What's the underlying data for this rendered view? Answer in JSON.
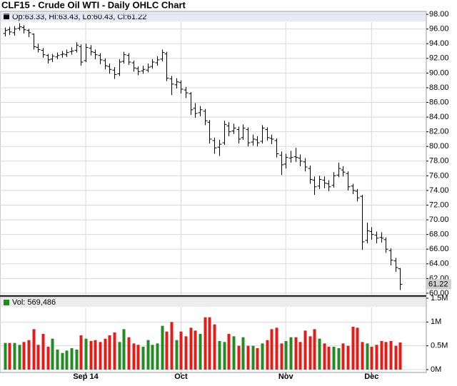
{
  "chart_data": [
    {
      "type": "ohlc",
      "title": "CLF15 - Crude Oil WTI - Daily OHLC Chart",
      "legend_text": "Op:63.33, Hi:63.43, Lo:60.43, Cl:61.22",
      "color": "#000000",
      "open": [
        95.4,
        95.9,
        95.5,
        96.1,
        96.2,
        95.8,
        95.3,
        93.5,
        93.1,
        92.4,
        91.9,
        92.2,
        92.5,
        92.5,
        92.9,
        93.1,
        93.6,
        91.7,
        93.4,
        92.8,
        92.4,
        91.7,
        90.9,
        90.4,
        89.9,
        91.6,
        92.4,
        91.4,
        90.6,
        90.3,
        90.4,
        90.9,
        91.4,
        91.9,
        92.6,
        89.2,
        88.4,
        88.7,
        87.7,
        87.2,
        85.2,
        84.6,
        84.8,
        83.3,
        80.8,
        79.9,
        80.5,
        82.8,
        82.1,
        82.3,
        81.2,
        82.3,
        80.6,
        80.9,
        80.7,
        82.3,
        81.1,
        80.8,
        78.8,
        77.6,
        78.4,
        78.6,
        78.4,
        77.9,
        77.0,
        75.4,
        74.6,
        75.4,
        74.9,
        74.7,
        76.1,
        76.8,
        76.3,
        74.6,
        73.9,
        73.2,
        67.2,
        68.4,
        67.9,
        67.6,
        67.3,
        65.8,
        64.4,
        63.33
      ],
      "high": [
        96.2,
        96.3,
        96.4,
        96.8,
        96.5,
        96.0,
        95.4,
        94.0,
        93.4,
        92.6,
        92.6,
        92.8,
        93.0,
        93.2,
        93.5,
        94.2,
        93.9,
        94.0,
        93.8,
        93.2,
        92.7,
        92.0,
        91.3,
        90.8,
        91.9,
        92.9,
        92.7,
        91.7,
        90.9,
        91.0,
        91.3,
        91.9,
        92.3,
        93.2,
        92.9,
        89.6,
        89.3,
        89.0,
        88.1,
        87.4,
        85.9,
        85.5,
        85.1,
        83.6,
        81.2,
        80.9,
        83.5,
        83.3,
        83.1,
        82.7,
        83.0,
        82.6,
        81.6,
        81.4,
        82.9,
        82.6,
        81.6,
        81.1,
        79.3,
        79.0,
        79.4,
        79.8,
        78.9,
        78.4,
        77.4,
        75.9,
        76.0,
        75.9,
        75.4,
        76.5,
        77.8,
        77.3,
        76.6,
        74.9,
        74.2,
        73.4,
        69.6,
        69.0,
        68.4,
        68.3,
        67.6,
        66.1,
        64.8,
        63.43
      ],
      "low": [
        95.0,
        95.2,
        95.1,
        95.8,
        95.4,
        94.9,
        93.2,
        92.8,
        92.1,
        91.3,
        91.5,
        91.9,
        92.1,
        92.2,
        92.5,
        92.8,
        91.0,
        91.5,
        92.4,
        91.9,
        91.2,
        90.5,
        89.9,
        89.2,
        89.6,
        91.3,
        91.1,
        90.2,
        89.7,
        89.9,
        90.1,
        90.6,
        91.0,
        91.6,
        88.9,
        87.0,
        87.9,
        87.2,
        86.6,
        84.3,
        83.9,
        84.1,
        82.9,
        80.4,
        79.0,
        78.7,
        80.2,
        81.4,
        81.7,
        80.4,
        80.9,
        80.0,
        80.1,
        80.0,
        80.4,
        80.8,
        80.3,
        78.5,
        76.1,
        77.0,
        77.8,
        77.9,
        77.3,
        76.6,
        74.9,
        73.4,
        74.2,
        74.3,
        73.9,
        74.4,
        75.8,
        75.9,
        74.0,
        73.5,
        72.5,
        65.9,
        66.8,
        67.3,
        66.8,
        66.9,
        65.5,
        63.8,
        62.9,
        60.43
      ],
      "close": [
        95.8,
        95.6,
        96.0,
        96.3,
        95.9,
        95.5,
        93.6,
        93.2,
        92.5,
        91.8,
        92.3,
        92.4,
        92.6,
        92.8,
        93.0,
        93.8,
        91.5,
        93.5,
        92.9,
        92.5,
        91.8,
        91.0,
        90.5,
        89.8,
        91.5,
        92.5,
        91.5,
        90.7,
        90.2,
        90.5,
        90.8,
        91.5,
        91.8,
        92.8,
        89.3,
        88.5,
        88.8,
        87.8,
        87.3,
        85.0,
        84.5,
        85.0,
        83.5,
        81.0,
        79.8,
        80.3,
        83.0,
        82.0,
        82.5,
        81.0,
        82.5,
        80.5,
        81.0,
        80.5,
        82.5,
        81.2,
        81.0,
        79.0,
        77.5,
        78.5,
        78.5,
        78.5,
        78.0,
        77.2,
        75.5,
        74.5,
        75.5,
        75.0,
        74.5,
        76.0,
        77.0,
        76.5,
        74.5,
        74.0,
        73.0,
        67.0,
        68.5,
        68.0,
        67.5,
        67.5,
        66.0,
        64.5,
        63.5,
        61.22
      ],
      "xlim": [
        -1,
        88.5
      ],
      "xticks": [
        {
          "value": 17,
          "label": "Sep 14"
        },
        {
          "value": 37,
          "label": "Oct"
        },
        {
          "value": 59,
          "label": "Nov"
        },
        {
          "value": 77,
          "label": "Dec"
        }
      ],
      "ylim": [
        59.7,
        98.4
      ],
      "yticks": [
        {
          "value": 60,
          "label": "60.00"
        },
        {
          "value": 62,
          "label": "62.00"
        },
        {
          "value": 64,
          "label": "64.00"
        },
        {
          "value": 66,
          "label": "66.00"
        },
        {
          "value": 68,
          "label": "68.00"
        },
        {
          "value": 70,
          "label": "70.00"
        },
        {
          "value": 72,
          "label": "72.00"
        },
        {
          "value": 74,
          "label": "74.00"
        },
        {
          "value": 76,
          "label": "76.00"
        },
        {
          "value": 78,
          "label": "78.00"
        },
        {
          "value": 80,
          "label": "80.00"
        },
        {
          "value": 82,
          "label": "82.00"
        },
        {
          "value": 84,
          "label": "84.00"
        },
        {
          "value": 86,
          "label": "86.00"
        },
        {
          "value": 88,
          "label": "88.00"
        },
        {
          "value": 90,
          "label": "90.00"
        },
        {
          "value": 92,
          "label": "92.00"
        },
        {
          "value": 94,
          "label": "94.00"
        },
        {
          "value": 96,
          "label": "96.00"
        },
        {
          "value": 98,
          "label": "98.00"
        }
      ],
      "grid": true
    },
    {
      "type": "volume",
      "legend_text": "Vol: 569,486",
      "up_color": "#228b22",
      "down_color": "#e41b17",
      "values": [
        560000,
        560000,
        560000,
        520000,
        580000,
        620000,
        850000,
        520000,
        750000,
        480000,
        650000,
        420000,
        350000,
        400000,
        450000,
        420000,
        720000,
        650000,
        600000,
        620000,
        580000,
        650000,
        720000,
        780000,
        580000,
        850000,
        680000,
        550000,
        520000,
        480000,
        620000,
        520000,
        550000,
        920000,
        800000,
        1000000,
        620000,
        800000,
        700000,
        880000,
        820000,
        750000,
        1100000,
        1100000,
        950000,
        600000,
        580000,
        750000,
        700000,
        500000,
        680000,
        500000,
        500000,
        450000,
        550000,
        620000,
        850000,
        880000,
        550000,
        600000,
        680000,
        680000,
        580000,
        820000,
        700000,
        850000,
        650000,
        550000,
        480000,
        480000,
        450000,
        550000,
        500000,
        900000,
        880000,
        580000,
        550000,
        480000,
        520000,
        600000,
        580000,
        600000,
        500000,
        569486
      ],
      "ylim": [
        -60000,
        1530000
      ],
      "yticks": [
        {
          "value": 0,
          "label": "0M"
        },
        {
          "value": 500000,
          "label": "0.5M"
        },
        {
          "value": 1000000,
          "label": "1M"
        },
        {
          "value": 1500000,
          "label": "1.5M"
        }
      ]
    }
  ]
}
